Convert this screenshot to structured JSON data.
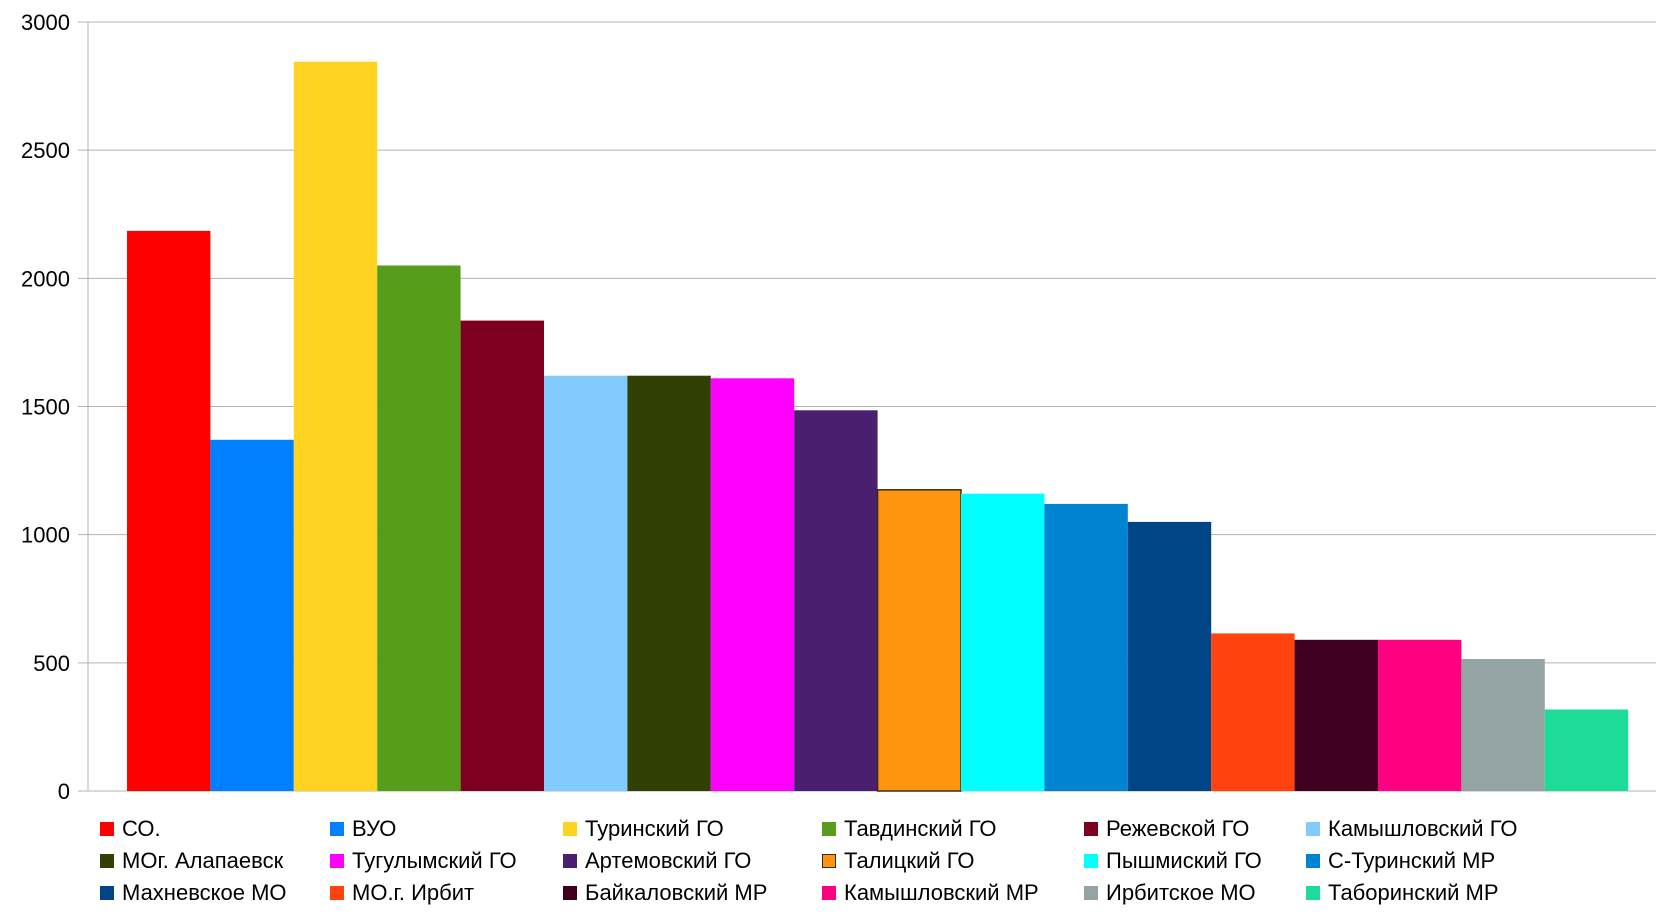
{
  "chart_data": {
    "type": "bar",
    "title": "",
    "xlabel": "",
    "ylabel": "",
    "ylim": [
      0,
      3000
    ],
    "yticks": [
      0,
      500,
      1000,
      1500,
      2000,
      2500,
      3000
    ],
    "grid": true,
    "legend_position": "bottom",
    "series": [
      {
        "name": "СО.",
        "value": 2185,
        "color": "#ff0000"
      },
      {
        "name": "ВУО",
        "value": 1370,
        "color": "#0080ff"
      },
      {
        "name": "Туринский ГО",
        "value": 2845,
        "color": "#ffd320"
      },
      {
        "name": "Тавдинский ГО",
        "value": 2050,
        "color": "#579d1c"
      },
      {
        "name": "Режевской ГО",
        "value": 1835,
        "color": "#7e0021"
      },
      {
        "name": "Камышловский ГО",
        "value": 1620,
        "color": "#83caff"
      },
      {
        "name": "МОг. Алапаевск",
        "value": 1620,
        "color": "#314004"
      },
      {
        "name": "Тугулымский ГО",
        "value": 1610,
        "color": "#ff00ff"
      },
      {
        "name": "Артемовский ГО",
        "value": 1485,
        "color": "#4b1f6f"
      },
      {
        "name": "Талицкий ГО",
        "value": 1175,
        "color": "#ff950e"
      },
      {
        "name": "Пышмиский ГО",
        "value": 1160,
        "color": "#00ffff"
      },
      {
        "name": "С-Туринский МР",
        "value": 1120,
        "color": "#0084d1"
      },
      {
        "name": "Махневское МО",
        "value": 1050,
        "color": "#004586"
      },
      {
        "name": "МО.г. Ирбит",
        "value": 615,
        "color": "#ff420e"
      },
      {
        "name": "Байкаловский МР",
        "value": 590,
        "color": "#3f0020"
      },
      {
        "name": "Камышловский МР",
        "value": 590,
        "color": "#ff0080"
      },
      {
        "name": "Ирбитское МО",
        "value": 515,
        "color": "#94a3a3"
      },
      {
        "name": "Таборинский МР",
        "value": 318,
        "color": "#1ddc97"
      }
    ]
  }
}
